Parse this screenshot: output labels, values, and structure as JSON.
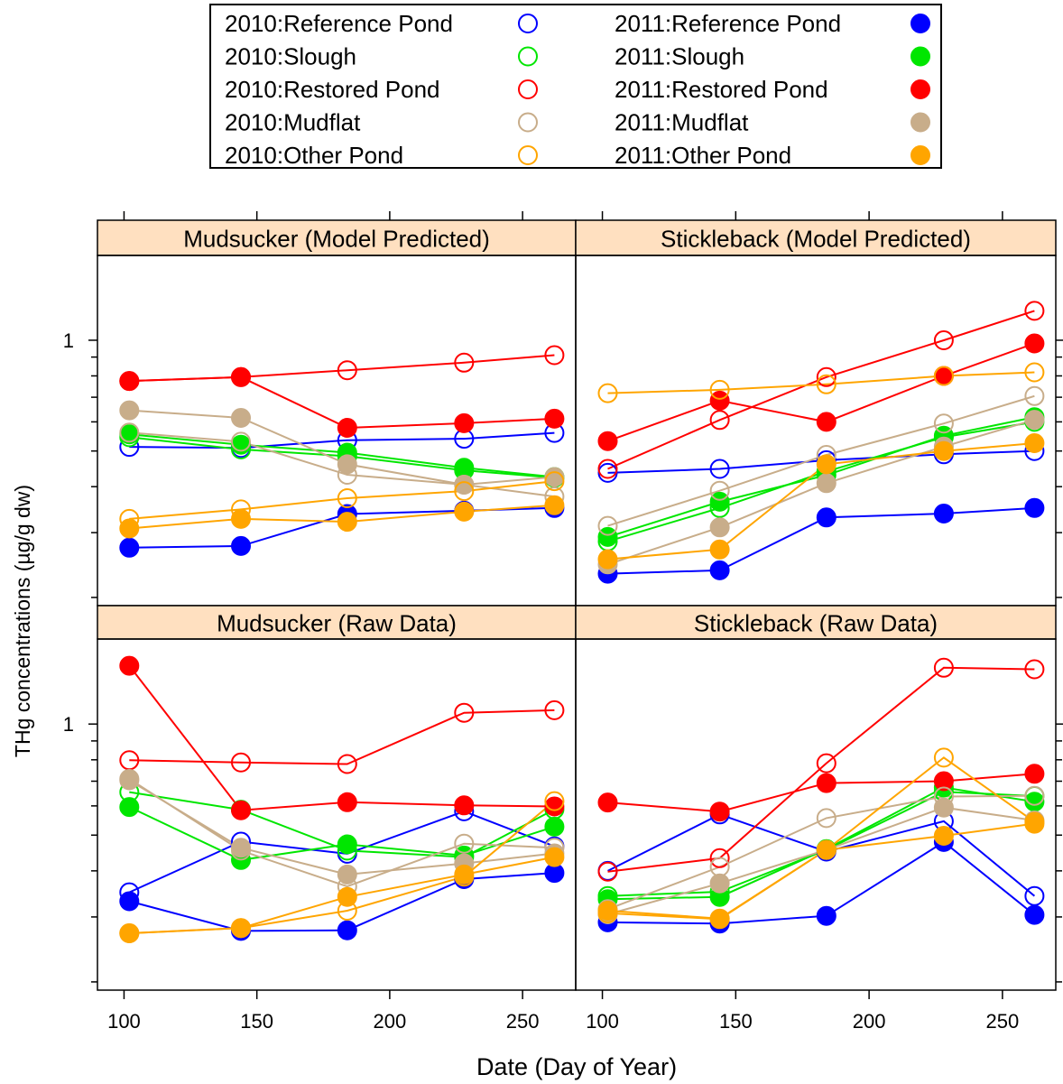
{
  "chart_data": {
    "type": "scatter",
    "lines": true,
    "log_y": true,
    "xlabel": "Date (Day of Year)",
    "ylabel": "THg concentrations (µg/g dw)",
    "xlim": [
      90,
      270
    ],
    "x_ticks": [
      100,
      150,
      200,
      250
    ],
    "y_ticks": [
      1
    ],
    "colors": {
      "Reference Pond": "#0000ff",
      "Slough": "#00e600",
      "Restored Pond": "#ff0000",
      "Mudflat": "#c8ad8a",
      "Other Pond": "#ffa500",
      "strip_bg": "#ffe0c0"
    },
    "legend": {
      "position": "top-center",
      "entries": [
        {
          "label": "2010:Reference Pond",
          "group": "Reference Pond",
          "year": "2010",
          "marker": "open"
        },
        {
          "label": "2011:Reference Pond",
          "group": "Reference Pond",
          "year": "2011",
          "marker": "filled"
        },
        {
          "label": "2010:Slough",
          "group": "Slough",
          "year": "2010",
          "marker": "open"
        },
        {
          "label": "2011:Slough",
          "group": "Slough",
          "year": "2011",
          "marker": "filled"
        },
        {
          "label": "2010:Restored Pond",
          "group": "Restored Pond",
          "year": "2010",
          "marker": "open"
        },
        {
          "label": "2011:Restored Pond",
          "group": "Restored Pond",
          "year": "2011",
          "marker": "filled"
        },
        {
          "label": "2010:Mudflat",
          "group": "Mudflat",
          "year": "2010",
          "marker": "open"
        },
        {
          "label": "2011:Mudflat",
          "group": "Mudflat",
          "year": "2011",
          "marker": "filled"
        },
        {
          "label": "2010:Other Pond",
          "group": "Other Pond",
          "year": "2010",
          "marker": "open"
        },
        {
          "label": "2011:Other Pond",
          "group": "Other Pond",
          "year": "2011",
          "marker": "filled"
        }
      ]
    },
    "panels": [
      {
        "title": "Mudsucker (Model Predicted)",
        "ylim": [
          0.19,
          1.7
        ],
        "series": [
          {
            "name": "2010:Reference Pond",
            "x": [
              102,
              144,
              184,
              228,
              262
            ],
            "y": [
              0.513,
              0.51,
              0.535,
              0.54,
              0.56
            ]
          },
          {
            "name": "2011:Reference Pond",
            "x": [
              102,
              144,
              184,
              228,
              262
            ],
            "y": [
              0.273,
              0.276,
              0.337,
              0.344,
              0.35
            ]
          },
          {
            "name": "2010:Slough",
            "x": [
              102,
              144,
              184,
              228,
              262
            ],
            "y": [
              0.545,
              0.505,
              0.484,
              0.443,
              0.423
            ]
          },
          {
            "name": "2011:Slough",
            "x": [
              102,
              144,
              184,
              228,
              262
            ],
            "y": [
              0.555,
              0.52,
              0.495,
              0.45,
              0.425
            ]
          },
          {
            "name": "2010:Restored Pond",
            "x": [
              102,
              144,
              184,
              228,
              262
            ],
            "y": [
              0.775,
              0.794,
              0.829,
              0.869,
              0.911
            ]
          },
          {
            "name": "2011:Restored Pond",
            "x": [
              102,
              144,
              184,
              228,
              262
            ],
            "y": [
              0.775,
              0.794,
              0.578,
              0.595,
              0.612
            ]
          },
          {
            "name": "2010:Mudflat",
            "x": [
              102,
              144,
              184,
              228,
              262
            ],
            "y": [
              0.561,
              0.53,
              0.431,
              0.405,
              0.376
            ]
          },
          {
            "name": "2011:Mudflat",
            "x": [
              102,
              144,
              184,
              228,
              262
            ],
            "y": [
              0.645,
              0.615,
              0.46,
              0.405,
              0.425
            ]
          },
          {
            "name": "2010:Other Pond",
            "x": [
              102,
              144,
              184,
              228,
              262
            ],
            "y": [
              0.327,
              0.347,
              0.372,
              0.389,
              0.414
            ]
          },
          {
            "name": "2011:Other Pond",
            "x": [
              102,
              144,
              184,
              228,
              262
            ],
            "y": [
              0.308,
              0.327,
              0.321,
              0.342,
              0.356
            ]
          }
        ]
      },
      {
        "title": "Stickleback (Model Predicted)",
        "ylim": [
          0.19,
          1.7
        ],
        "series": [
          {
            "name": "2010:Reference Pond",
            "x": [
              102,
              144,
              184,
              228,
              262
            ],
            "y": [
              0.436,
              0.447,
              0.472,
              0.49,
              0.5
            ]
          },
          {
            "name": "2011:Reference Pond",
            "x": [
              102,
              144,
              184,
              228,
              262
            ],
            "y": [
              0.232,
              0.237,
              0.33,
              0.338,
              0.35
            ]
          },
          {
            "name": "2010:Slough",
            "x": [
              102,
              144,
              184,
              228,
              262
            ],
            "y": [
              0.284,
              0.35,
              0.44,
              0.545,
              0.6
            ]
          },
          {
            "name": "2011:Slough",
            "x": [
              102,
              144,
              184,
              228,
              262
            ],
            "y": [
              0.292,
              0.364,
              0.43,
              0.55,
              0.618
            ]
          },
          {
            "name": "2010:Restored Pond",
            "x": [
              102,
              144,
              184,
              228,
              262
            ],
            "y": [
              0.447,
              0.607,
              0.794,
              1.0,
              1.202
            ]
          },
          {
            "name": "2011:Restored Pond",
            "x": [
              102,
              144,
              184,
              228,
              262
            ],
            "y": [
              0.532,
              0.685,
              0.6,
              0.8,
              0.98
            ]
          },
          {
            "name": "2010:Mudflat",
            "x": [
              102,
              144,
              184,
              228,
              262
            ],
            "y": [
              0.313,
              0.39,
              0.488,
              0.594,
              0.705
            ]
          },
          {
            "name": "2011:Mudflat",
            "x": [
              102,
              144,
              184,
              228,
              262
            ],
            "y": [
              0.246,
              0.31,
              0.409,
              0.514,
              0.608
            ]
          },
          {
            "name": "2010:Other Pond",
            "x": [
              102,
              144,
              184,
              228,
              262
            ],
            "y": [
              0.718,
              0.733,
              0.759,
              0.8,
              0.818
            ]
          },
          {
            "name": "2011:Other Pond",
            "x": [
              102,
              144,
              184,
              228,
              262
            ],
            "y": [
              0.254,
              0.27,
              0.46,
              0.5,
              0.525
            ]
          }
        ]
      },
      {
        "title": "Mudsucker (Raw Data)",
        "ylim": [
          0.19,
          1.7
        ],
        "series": [
          {
            "name": "2010:Reference Pond",
            "x": [
              102,
              144,
              184,
              228,
              262
            ],
            "y": [
              0.35,
              0.48,
              0.445,
              0.58,
              0.466
            ]
          },
          {
            "name": "2011:Reference Pond",
            "x": [
              102,
              144,
              184,
              228,
              262
            ],
            "y": [
              0.331,
              0.275,
              0.276,
              0.38,
              0.395
            ]
          },
          {
            "name": "2010:Slough",
            "x": [
              102,
              144,
              184,
              228,
              262
            ],
            "y": [
              0.654,
              0.586,
              0.454,
              0.436,
              0.587
            ]
          },
          {
            "name": "2011:Slough",
            "x": [
              102,
              144,
              184,
              228,
              262
            ],
            "y": [
              0.596,
              0.428,
              0.472,
              0.44,
              0.527
            ]
          },
          {
            "name": "2010:Restored Pond",
            "x": [
              102,
              144,
              184,
              228,
              262
            ],
            "y": [
              0.798,
              0.787,
              0.779,
              1.073,
              1.09
            ]
          },
          {
            "name": "2011:Restored Pond",
            "x": [
              102,
              144,
              184,
              228,
              262
            ],
            "y": [
              1.439,
              0.584,
              0.614,
              0.602,
              0.598
            ]
          },
          {
            "name": "2010:Mudflat",
            "x": [
              102,
              144,
              184,
              228,
              262
            ],
            "y": [
              0.71,
              0.454,
              0.363,
              0.474,
              0.462
            ]
          },
          {
            "name": "2011:Mudflat",
            "x": [
              102,
              144,
              184,
              228,
              262
            ],
            "y": [
              0.704,
              0.462,
              0.391,
              0.419,
              0.446
            ]
          },
          {
            "name": "2010:Other Pond",
            "x": [
              102,
              144,
              184,
              228,
              262
            ],
            "y": [
              0.271,
              0.28,
              0.312,
              0.386,
              0.618
            ]
          },
          {
            "name": "2011:Other Pond",
            "x": [
              102,
              144,
              184,
              228,
              262
            ],
            "y": [
              0.271,
              0.28,
              0.34,
              0.391,
              0.436
            ]
          }
        ]
      },
      {
        "title": "Stickleback (Raw Data)",
        "ylim": [
          0.19,
          1.7
        ],
        "series": [
          {
            "name": "2010:Reference Pond",
            "x": [
              102,
              144,
              184,
              228,
              262
            ],
            "y": [
              0.4,
              0.569,
              0.451,
              0.545,
              0.342
            ]
          },
          {
            "name": "2011:Reference Pond",
            "x": [
              102,
              144,
              184,
              228,
              262
            ],
            "y": [
              0.29,
              0.288,
              0.302,
              0.479,
              0.304
            ]
          },
          {
            "name": "2010:Slough",
            "x": [
              102,
              144,
              184,
              228,
              262
            ],
            "y": [
              0.342,
              0.351,
              0.456,
              0.655,
              0.638
            ]
          },
          {
            "name": "2011:Slough",
            "x": [
              102,
              144,
              184,
              228,
              262
            ],
            "y": [
              0.335,
              0.34,
              0.458,
              0.673,
              0.616
            ]
          },
          {
            "name": "2010:Restored Pond",
            "x": [
              102,
              144,
              184,
              228,
              262
            ],
            "y": [
              0.398,
              0.433,
              0.783,
              1.421,
              1.408
            ]
          },
          {
            "name": "2011:Restored Pond",
            "x": [
              102,
              144,
              184,
              228,
              262
            ],
            "y": [
              0.613,
              0.579,
              0.692,
              0.7,
              0.733
            ]
          },
          {
            "name": "2010:Mudflat",
            "x": [
              102,
              144,
              184,
              228,
              262
            ],
            "y": [
              0.315,
              0.41,
              0.556,
              0.636,
              0.639
            ]
          },
          {
            "name": "2011:Mudflat",
            "x": [
              102,
              144,
              184,
              228,
              262
            ],
            "y": [
              0.305,
              0.37,
              0.456,
              0.594,
              0.548
            ]
          },
          {
            "name": "2010:Other Pond",
            "x": [
              102,
              144,
              184,
              228,
              262
            ],
            "y": [
              0.307,
              0.296,
              0.456,
              0.811,
              0.543
            ]
          },
          {
            "name": "2011:Other Pond",
            "x": [
              102,
              144,
              184,
              228,
              262
            ],
            "y": [
              0.312,
              0.297,
              0.456,
              0.498,
              0.537
            ]
          }
        ]
      }
    ]
  }
}
